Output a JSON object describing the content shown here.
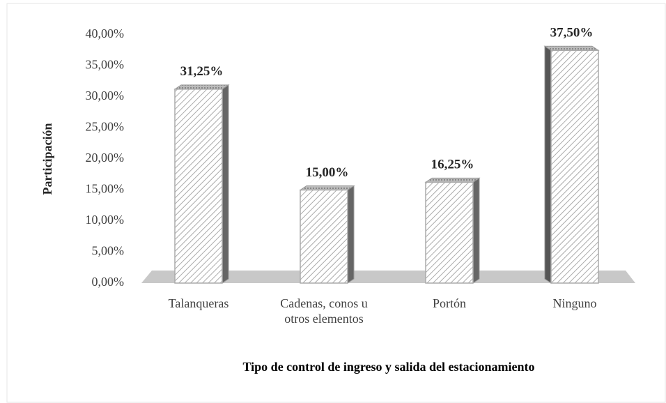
{
  "chart_data": {
    "type": "bar3d",
    "categories": [
      "Talanqueras",
      "Cadenas, conos u otros elementos",
      "Portón",
      "Ninguno"
    ],
    "values": [
      31.25,
      15,
      16.25,
      37.5
    ],
    "value_labels": [
      "31,25%",
      "15,00%",
      "16,25%",
      "37,50%"
    ],
    "ylim": [
      0,
      40
    ],
    "yticks": [
      {
        "value": 0,
        "label": "0,00%"
      },
      {
        "value": 5,
        "label": "5,00%"
      },
      {
        "value": 10,
        "label": "10,00%"
      },
      {
        "value": 15,
        "label": "15,00%"
      },
      {
        "value": 20,
        "label": "20,00%"
      },
      {
        "value": 25,
        "label": "25,00%"
      },
      {
        "value": 30,
        "label": "30,00%"
      },
      {
        "value": 35,
        "label": "35,00%"
      },
      {
        "value": 40,
        "label": "40,00%"
      }
    ],
    "y_label": "Participación",
    "x_label": "Tipo de control de ingreso y salida del estacionamiento",
    "color": "#ffffff",
    "grid": false
  }
}
